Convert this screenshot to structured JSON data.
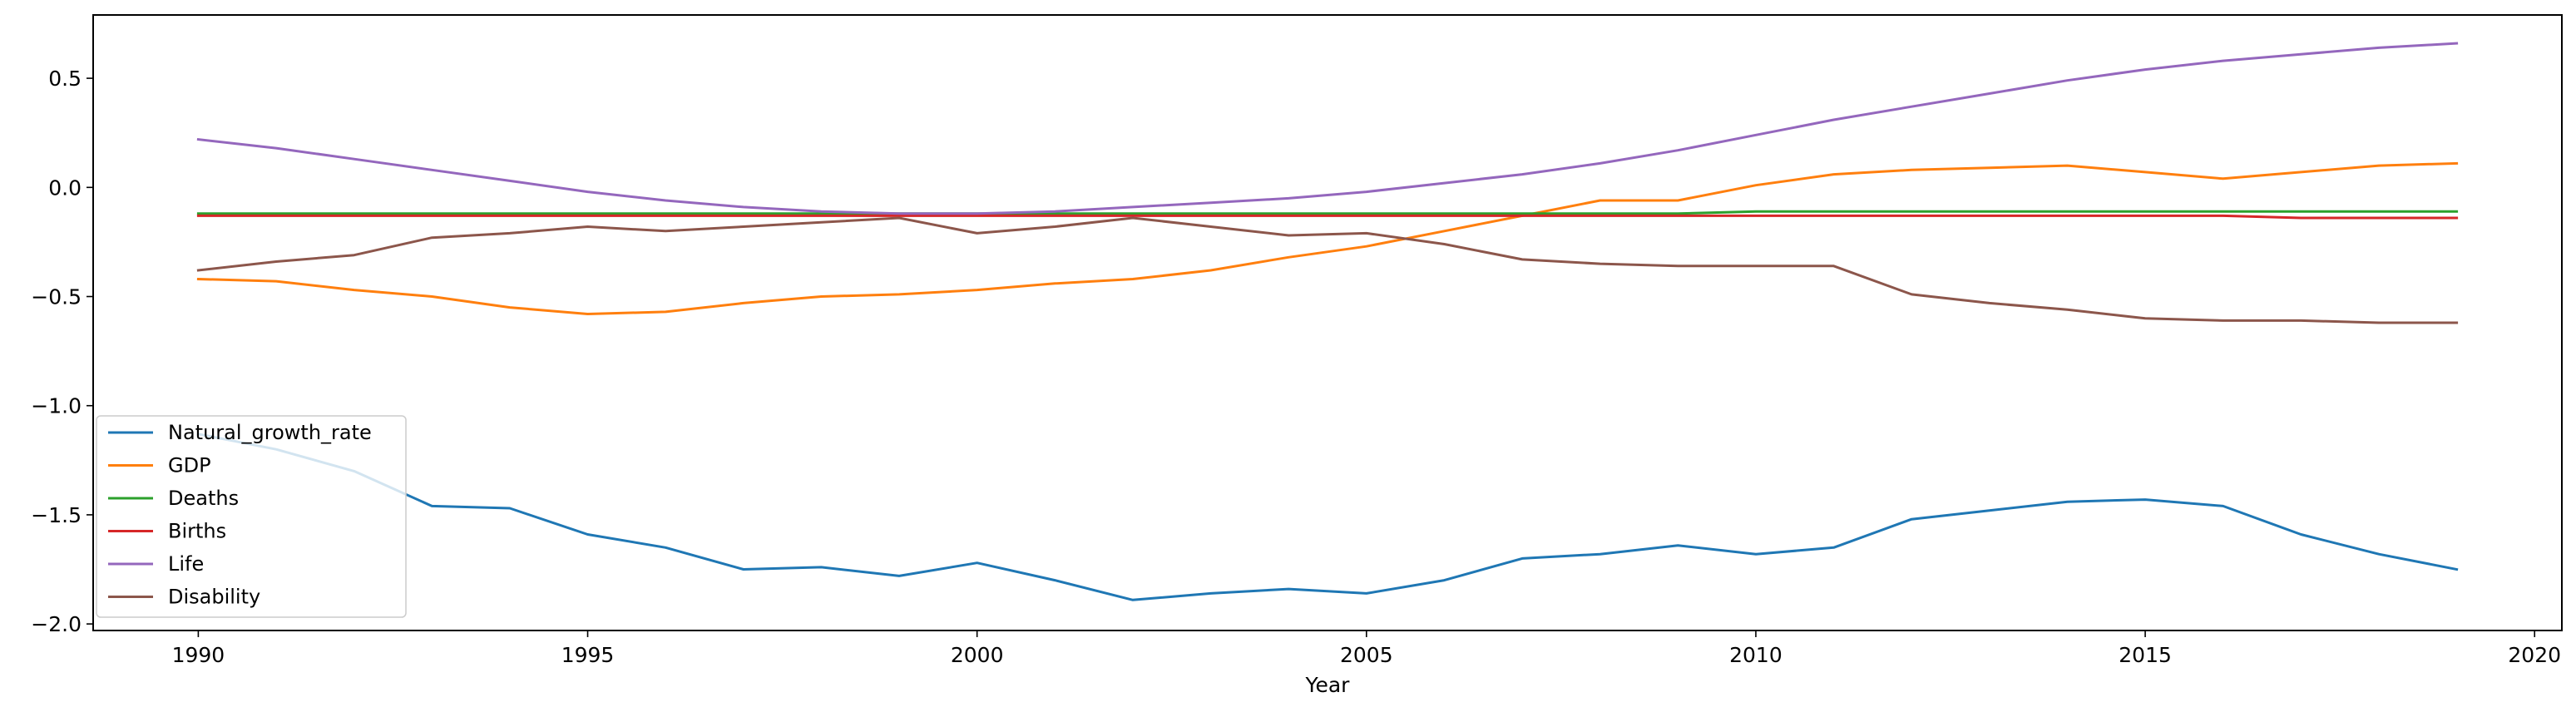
{
  "chart_data": {
    "type": "line",
    "title": "",
    "xlabel": "Year",
    "ylabel": "",
    "xlim": [
      1988.65,
      2020.35
    ],
    "ylim": [
      -2.03,
      0.79
    ],
    "xticks": [
      1990,
      1995,
      2000,
      2005,
      2010,
      2015,
      2020
    ],
    "xtick_labels": [
      "1990",
      "1995",
      "2000",
      "2005",
      "2010",
      "2015",
      "2020"
    ],
    "yticks": [
      0.5,
      0.0,
      -0.5,
      -1.0,
      -1.5,
      -2.0
    ],
    "ytick_labels": [
      "0.5",
      "0.0",
      "−0.5",
      "−1.0",
      "−1.5",
      "−2.0"
    ],
    "grid": false,
    "legend_position": "lower-left",
    "x": [
      1990,
      1991,
      1992,
      1993,
      1994,
      1995,
      1996,
      1997,
      1998,
      1999,
      2000,
      2001,
      2002,
      2003,
      2004,
      2005,
      2006,
      2007,
      2008,
      2009,
      2010,
      2011,
      2012,
      2013,
      2014,
      2015,
      2016,
      2017,
      2018,
      2019
    ],
    "series": [
      {
        "name": "Natural_growth_rate",
        "color": "#1f77b4",
        "values": [
          -1.13,
          -1.2,
          -1.3,
          -1.46,
          -1.47,
          -1.59,
          -1.65,
          -1.75,
          -1.74,
          -1.78,
          -1.72,
          -1.8,
          -1.89,
          -1.86,
          -1.84,
          -1.86,
          -1.8,
          -1.7,
          -1.68,
          -1.64,
          -1.68,
          -1.65,
          -1.52,
          -1.48,
          -1.44,
          -1.43,
          -1.46,
          -1.59,
          -1.68,
          -1.75
        ]
      },
      {
        "name": "GDP",
        "color": "#ff7f0e",
        "values": [
          -0.42,
          -0.43,
          -0.47,
          -0.5,
          -0.55,
          -0.58,
          -0.57,
          -0.53,
          -0.5,
          -0.49,
          -0.47,
          -0.44,
          -0.42,
          -0.38,
          -0.32,
          -0.27,
          -0.2,
          -0.13,
          -0.06,
          -0.06,
          0.01,
          0.06,
          0.08,
          0.09,
          0.1,
          0.07,
          0.04,
          0.07,
          0.1,
          0.11
        ]
      },
      {
        "name": "Deaths",
        "color": "#2ca02c",
        "values": [
          -0.12,
          -0.12,
          -0.12,
          -0.12,
          -0.12,
          -0.12,
          -0.12,
          -0.12,
          -0.12,
          -0.12,
          -0.12,
          -0.12,
          -0.12,
          -0.12,
          -0.12,
          -0.12,
          -0.12,
          -0.12,
          -0.12,
          -0.12,
          -0.11,
          -0.11,
          -0.11,
          -0.11,
          -0.11,
          -0.11,
          -0.11,
          -0.11,
          -0.11,
          -0.11
        ]
      },
      {
        "name": "Births",
        "color": "#d62728",
        "values": [
          -0.13,
          -0.13,
          -0.13,
          -0.13,
          -0.13,
          -0.13,
          -0.13,
          -0.13,
          -0.13,
          -0.13,
          -0.13,
          -0.13,
          -0.13,
          -0.13,
          -0.13,
          -0.13,
          -0.13,
          -0.13,
          -0.13,
          -0.13,
          -0.13,
          -0.13,
          -0.13,
          -0.13,
          -0.13,
          -0.13,
          -0.13,
          -0.14,
          -0.14,
          -0.14
        ]
      },
      {
        "name": "Life",
        "color": "#9467bd",
        "values": [
          0.22,
          0.18,
          0.13,
          0.08,
          0.03,
          -0.02,
          -0.06,
          -0.09,
          -0.11,
          -0.12,
          -0.12,
          -0.11,
          -0.09,
          -0.07,
          -0.05,
          -0.02,
          0.02,
          0.06,
          0.11,
          0.17,
          0.24,
          0.31,
          0.37,
          0.43,
          0.49,
          0.54,
          0.58,
          0.61,
          0.64,
          0.66
        ]
      },
      {
        "name": "Disability",
        "color": "#8c564b",
        "values": [
          -0.38,
          -0.34,
          -0.31,
          -0.23,
          -0.21,
          -0.18,
          -0.2,
          -0.18,
          -0.16,
          -0.14,
          -0.21,
          -0.18,
          -0.14,
          -0.18,
          -0.22,
          -0.21,
          -0.26,
          -0.33,
          -0.35,
          -0.36,
          -0.36,
          -0.36,
          -0.49,
          -0.53,
          -0.56,
          -0.6,
          -0.61,
          -0.61,
          -0.62,
          -0.62
        ]
      }
    ]
  }
}
